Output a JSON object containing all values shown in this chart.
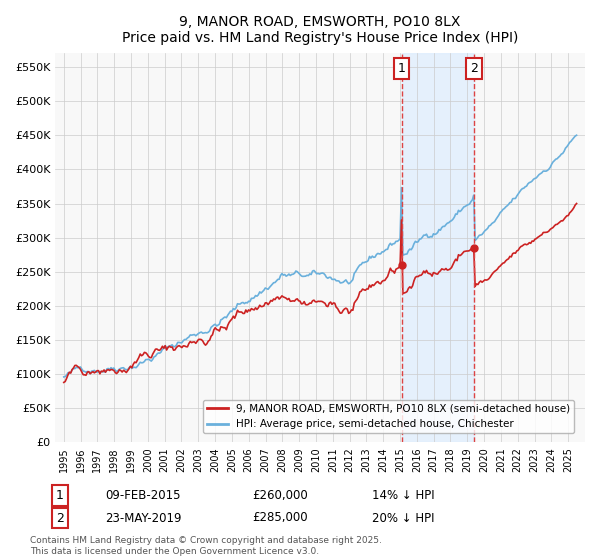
{
  "title": "9, MANOR ROAD, EMSWORTH, PO10 8LX",
  "subtitle": "Price paid vs. HM Land Registry's House Price Index (HPI)",
  "ylabel_ticks": [
    "£0",
    "£50K",
    "£100K",
    "£150K",
    "£200K",
    "£250K",
    "£300K",
    "£350K",
    "£400K",
    "£450K",
    "£500K",
    "£550K"
  ],
  "ytick_vals": [
    0,
    50000,
    100000,
    150000,
    200000,
    250000,
    300000,
    350000,
    400000,
    450000,
    500000,
    550000
  ],
  "ylim": [
    0,
    570000
  ],
  "hpi_color": "#6ab0dc",
  "price_color": "#cc2222",
  "vline_color": "#dd4444",
  "shade_color": "#ddeeff",
  "marker1_year": 2015.1,
  "marker2_year": 2019.4,
  "transaction1": {
    "date": "09-FEB-2015",
    "price": 260000,
    "label": "14% ↓ HPI"
  },
  "transaction2": {
    "date": "23-MAY-2019",
    "price": 285000,
    "label": "20% ↓ HPI"
  },
  "legend_label_red": "9, MANOR ROAD, EMSWORTH, PO10 8LX (semi-detached house)",
  "legend_label_blue": "HPI: Average price, semi-detached house, Chichester",
  "footnote": "Contains HM Land Registry data © Crown copyright and database right 2025.\nThis data is licensed under the Open Government Licence v3.0.",
  "background_color": "#ffffff",
  "plot_bg_color": "#f8f8f8"
}
